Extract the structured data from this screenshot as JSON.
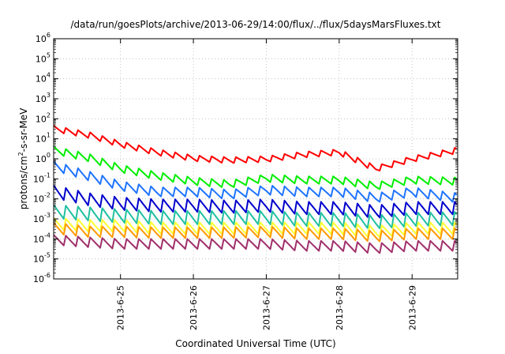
{
  "chart_data": {
    "type": "line",
    "title": "/data/run/goesPlots/archive/2013-06-29/14:00/flux/../flux/5daysMarsFluxes.txt",
    "xlabel": "Coordinated Universal Time (UTC)",
    "ylabel": {
      "pre": "protons/cm",
      "sup": "2",
      "post": "-s-sr-MeV"
    },
    "yscale": "log",
    "ylim": [
      1e-06,
      1000000.0
    ],
    "yticks": [
      {
        "base": "10",
        "exp": "-6"
      },
      {
        "base": "10",
        "exp": "-5"
      },
      {
        "base": "10",
        "exp": "-4"
      },
      {
        "base": "10",
        "exp": "-3"
      },
      {
        "base": "10",
        "exp": "-2"
      },
      {
        "base": "10",
        "exp": "-1"
      },
      {
        "base": "10",
        "exp": "0"
      },
      {
        "base": "10",
        "exp": "1"
      },
      {
        "base": "10",
        "exp": "2"
      },
      {
        "base": "10",
        "exp": "3"
      },
      {
        "base": "10",
        "exp": "4"
      },
      {
        "base": "10",
        "exp": "5"
      },
      {
        "base": "10",
        "exp": "6"
      }
    ],
    "xlim": [
      "2013-06-24 02:00",
      "2013-06-29 15:00"
    ],
    "xticks": [
      "2013-6-25",
      "2013-6-26",
      "2013-6-27",
      "2013-6-28",
      "2013-6-29"
    ],
    "grid": true,
    "x": [
      "2013-06-24 02:00",
      "2013-06-24 14:00",
      "2013-06-25 00:00",
      "2013-06-25 12:00",
      "2013-06-26 00:00",
      "2013-06-26 12:00",
      "2013-06-27 00:00",
      "2013-06-27 12:00",
      "2013-06-28 00:00",
      "2013-06-28 12:00",
      "2013-06-29 00:00",
      "2013-06-29 15:00"
    ],
    "series": [
      {
        "color": "#ff0000",
        "values": [
          30,
          14,
          5,
          2,
          1.0,
          0.8,
          0.9,
          1.5,
          2.0,
          0.3,
          0.9,
          2.5
        ]
      },
      {
        "color": "#00ee00",
        "values": [
          2.5,
          1.0,
          0.3,
          0.13,
          0.07,
          0.05,
          0.1,
          0.08,
          0.08,
          0.04,
          0.08,
          0.07
        ]
      },
      {
        "color": "#1f74ff",
        "values": [
          0.4,
          0.12,
          0.04,
          0.02,
          0.02,
          0.015,
          0.025,
          0.02,
          0.02,
          0.01,
          0.02,
          0.01
        ]
      },
      {
        "color": "#0000cc",
        "values": [
          0.02,
          0.008,
          0.005,
          0.004,
          0.004,
          0.0035,
          0.004,
          0.003,
          0.003,
          0.002,
          0.003,
          0.003
        ]
      },
      {
        "color": "#20c0a0",
        "values": [
          0.002,
          0.0015,
          0.0012,
          0.001,
          0.001,
          0.001,
          0.001,
          0.0008,
          0.0008,
          0.0006,
          0.0008,
          0.0009
        ]
      },
      {
        "color": "#ffff33",
        "values": [
          0.0005,
          0.0004,
          0.0004,
          0.0003,
          0.0003,
          0.0003,
          0.0003,
          0.0003,
          0.0003,
          0.0002,
          0.0003,
          0.0003
        ]
      },
      {
        "color": "#ff9900",
        "values": [
          0.0003,
          0.0002,
          0.0002,
          0.00018,
          0.00018,
          0.00018,
          0.0002,
          0.00016,
          0.00016,
          0.00012,
          0.00016,
          0.00016
        ]
      },
      {
        "color": "#a0306a",
        "values": [
          8e-05,
          6e-05,
          5e-05,
          5e-05,
          5e-05,
          5e-05,
          5e-05,
          4e-05,
          4e-05,
          3e-05,
          4e-05,
          4e-05
        ]
      }
    ]
  }
}
